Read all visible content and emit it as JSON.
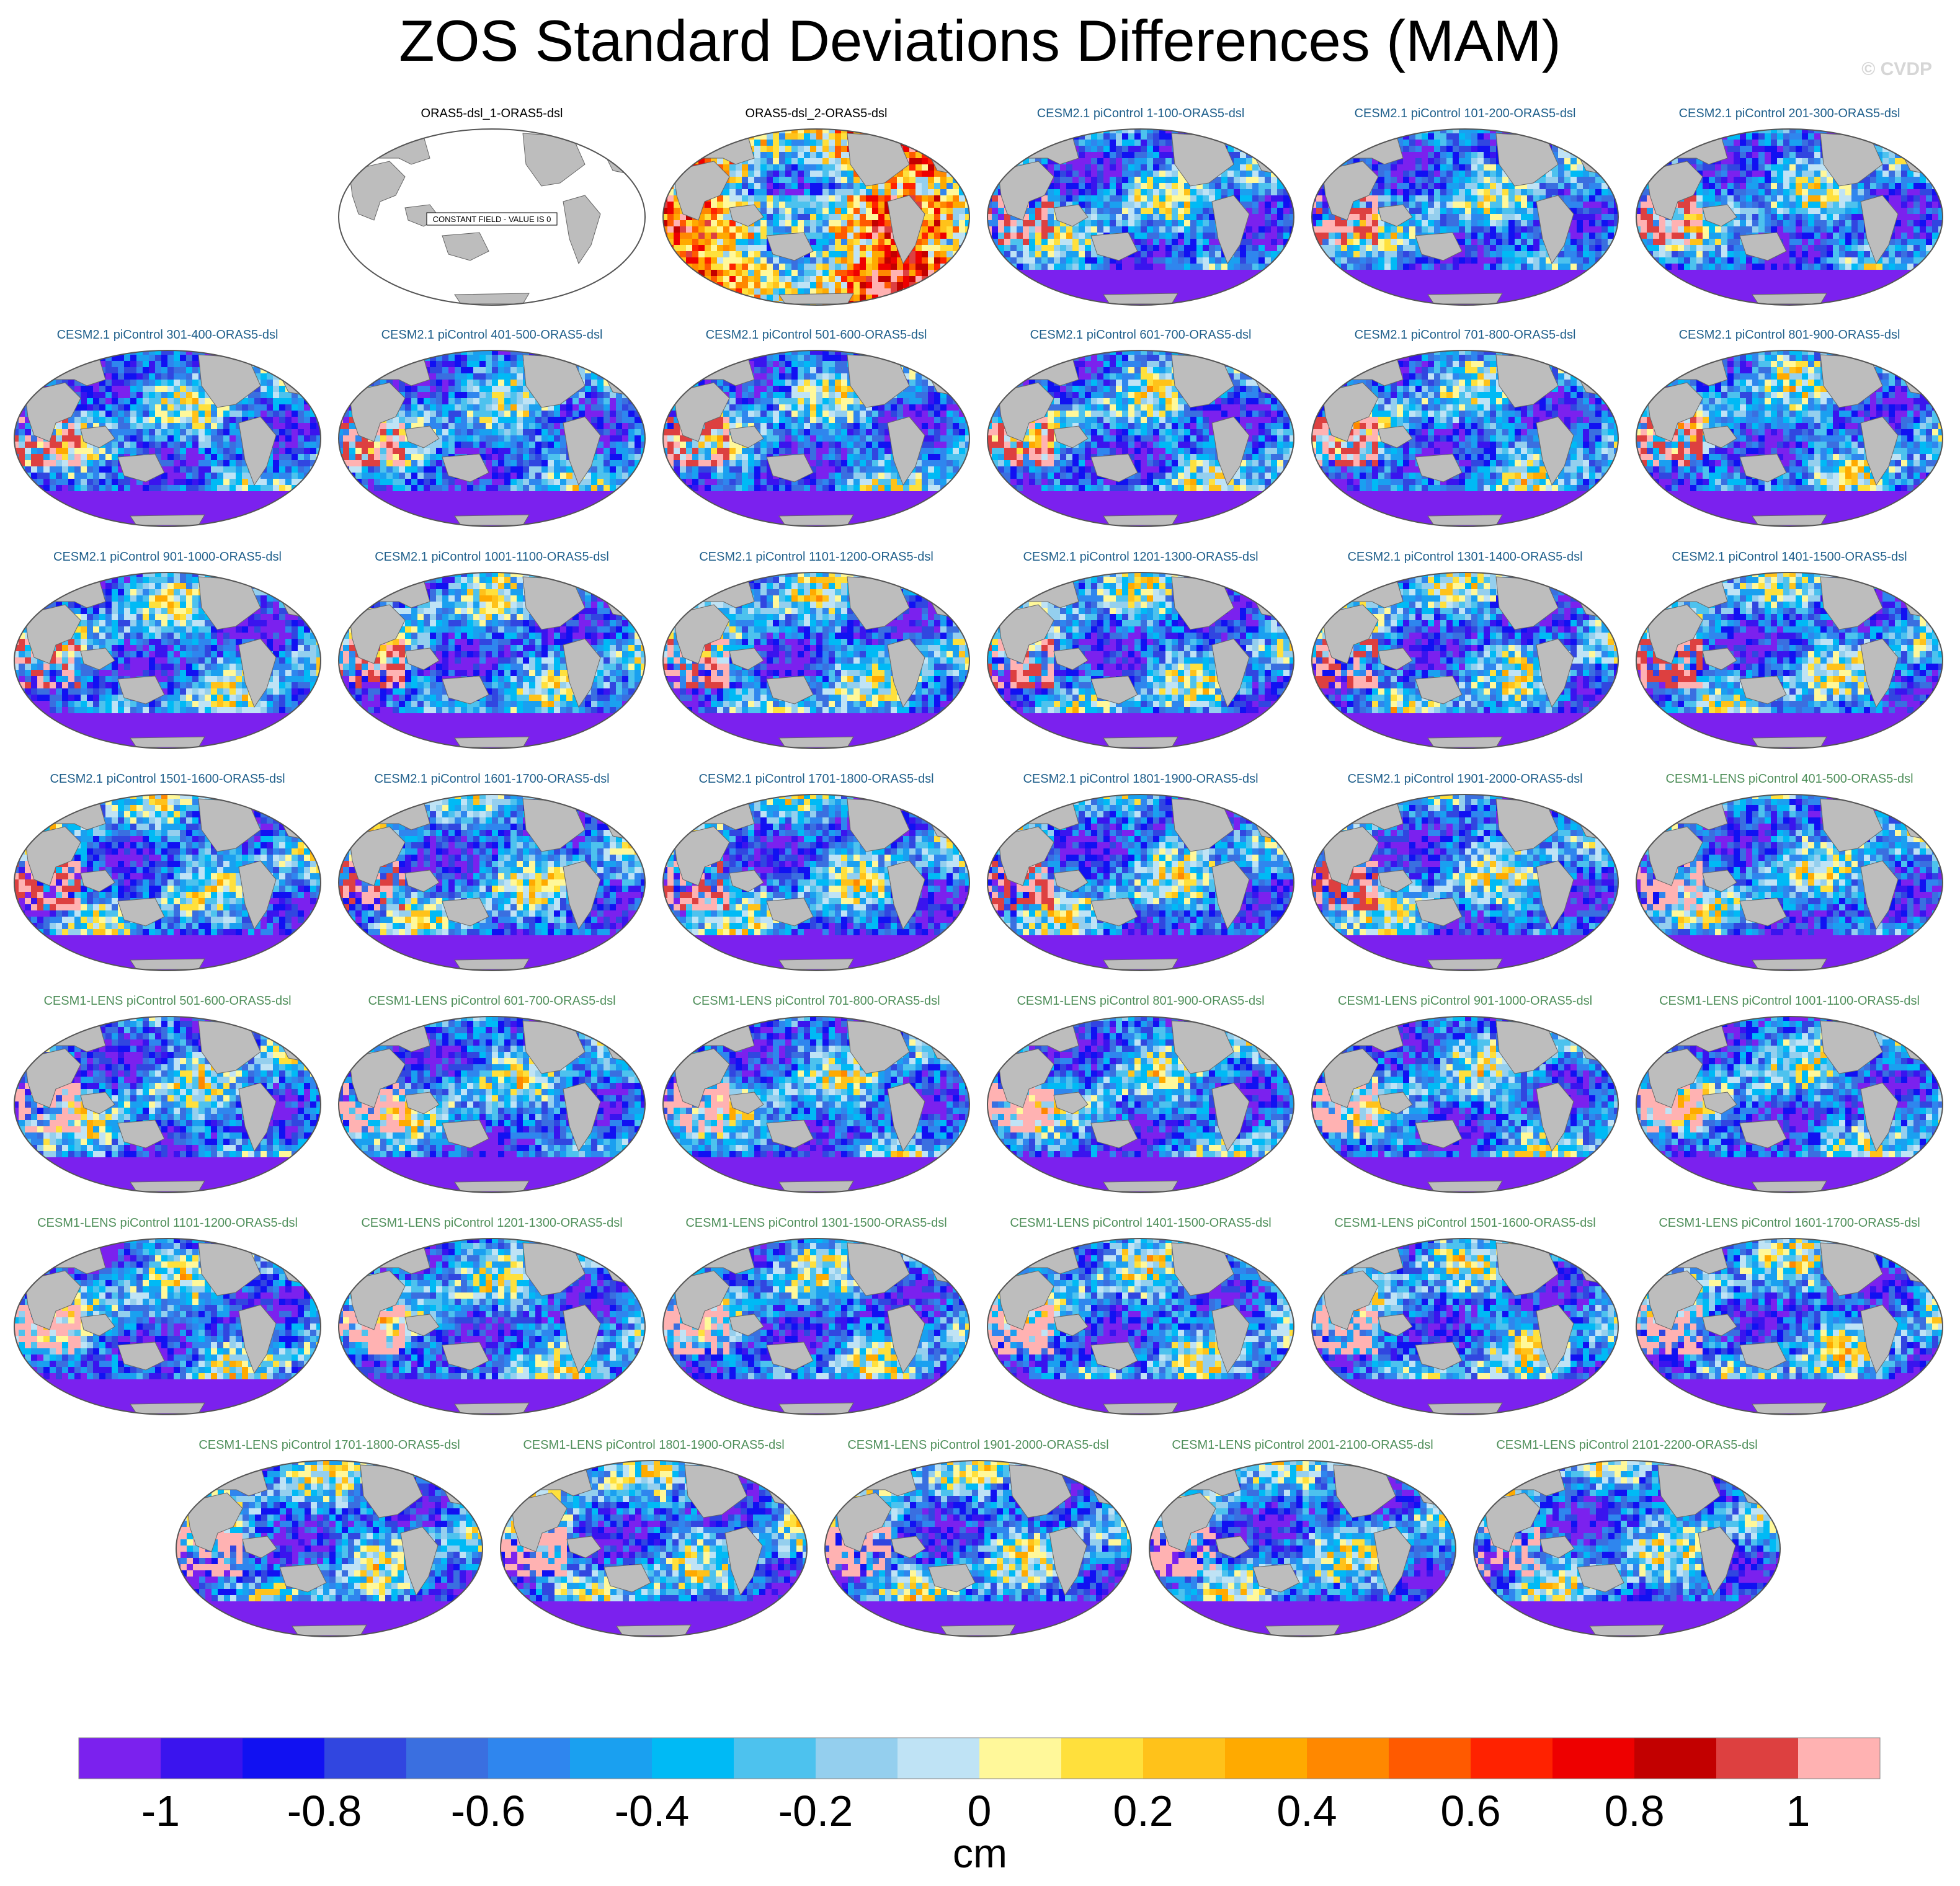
{
  "title": "ZOS Standard Deviations Differences (MAM)",
  "credit": "© CVDP",
  "units": "cm",
  "colors": {
    "title_dark": "#000000",
    "title_cesm2": "#1f5f8b",
    "title_cesm1": "#4f8f5a",
    "land": "#bdbdbd",
    "outline": "#555555"
  },
  "constant_field_note": "CONSTANT FIELD - VALUE IS 0",
  "chart_data": {
    "type": "heatmap",
    "title": "ZOS Standard Deviations Differences (MAM)",
    "colorbar": {
      "units": "cm",
      "range": [
        -1.1,
        1.1
      ],
      "levels": [
        -1,
        -0.9,
        -0.8,
        -0.7,
        -0.6,
        -0.5,
        -0.4,
        -0.3,
        -0.2,
        -0.1,
        0,
        0.1,
        0.2,
        0.3,
        0.4,
        0.5,
        0.6,
        0.7,
        0.8,
        0.9,
        1
      ],
      "tick_labels": [
        "-1",
        "-0.8",
        "-0.6",
        "-0.4",
        "-0.2",
        "0",
        "0.2",
        "0.4",
        "0.6",
        "0.8",
        "1"
      ],
      "colors": [
        "#7b21ee",
        "#3a14ee",
        "#1111f2",
        "#3146e0",
        "#3a6fe0",
        "#2f86ee",
        "#1aa0f0",
        "#00baf5",
        "#4dc2ee",
        "#94cfee",
        "#bfe3f5",
        "#fff89a",
        "#ffe03c",
        "#ffc21a",
        "#ffaa00",
        "#ff8800",
        "#ff5a00",
        "#ff2200",
        "#ee0000",
        "#c20000",
        "#dd4040",
        "#ffb2b2"
      ]
    },
    "panels": [
      {
        "title": "ORAS5-dsl_1-ORAS5-dsl",
        "group": "obs",
        "constant": true
      },
      {
        "title": "ORAS5-dsl_2-ORAS5-dsl",
        "group": "obs"
      },
      {
        "title": "CESM2.1 piControl 1-100-ORAS5-dsl",
        "group": "cesm2"
      },
      {
        "title": "CESM2.1 piControl 101-200-ORAS5-dsl",
        "group": "cesm2"
      },
      {
        "title": "CESM2.1 piControl 201-300-ORAS5-dsl",
        "group": "cesm2"
      },
      {
        "title": "CESM2.1 piControl 301-400-ORAS5-dsl",
        "group": "cesm2"
      },
      {
        "title": "CESM2.1 piControl 401-500-ORAS5-dsl",
        "group": "cesm2"
      },
      {
        "title": "CESM2.1 piControl 501-600-ORAS5-dsl",
        "group": "cesm2"
      },
      {
        "title": "CESM2.1 piControl 601-700-ORAS5-dsl",
        "group": "cesm2"
      },
      {
        "title": "CESM2.1 piControl 701-800-ORAS5-dsl",
        "group": "cesm2"
      },
      {
        "title": "CESM2.1 piControl 801-900-ORAS5-dsl",
        "group": "cesm2"
      },
      {
        "title": "CESM2.1 piControl 901-1000-ORAS5-dsl",
        "group": "cesm2"
      },
      {
        "title": "CESM2.1 piControl 1001-1100-ORAS5-dsl",
        "group": "cesm2"
      },
      {
        "title": "CESM2.1 piControl 1101-1200-ORAS5-dsl",
        "group": "cesm2"
      },
      {
        "title": "CESM2.1 piControl 1201-1300-ORAS5-dsl",
        "group": "cesm2"
      },
      {
        "title": "CESM2.1 piControl 1301-1400-ORAS5-dsl",
        "group": "cesm2"
      },
      {
        "title": "CESM2.1 piControl 1401-1500-ORAS5-dsl",
        "group": "cesm2"
      },
      {
        "title": "CESM2.1 piControl 1501-1600-ORAS5-dsl",
        "group": "cesm2"
      },
      {
        "title": "CESM2.1 piControl 1601-1700-ORAS5-dsl",
        "group": "cesm2"
      },
      {
        "title": "CESM2.1 piControl 1701-1800-ORAS5-dsl",
        "group": "cesm2"
      },
      {
        "title": "CESM2.1 piControl 1801-1900-ORAS5-dsl",
        "group": "cesm2"
      },
      {
        "title": "CESM2.1 piControl 1901-2000-ORAS5-dsl",
        "group": "cesm2"
      },
      {
        "title": "CESM1-LENS piControl 401-500-ORAS5-dsl",
        "group": "cesm1"
      },
      {
        "title": "CESM1-LENS piControl 501-600-ORAS5-dsl",
        "group": "cesm1"
      },
      {
        "title": "CESM1-LENS piControl 601-700-ORAS5-dsl",
        "group": "cesm1"
      },
      {
        "title": "CESM1-LENS piControl 701-800-ORAS5-dsl",
        "group": "cesm1"
      },
      {
        "title": "CESM1-LENS piControl 801-900-ORAS5-dsl",
        "group": "cesm1"
      },
      {
        "title": "CESM1-LENS piControl 901-1000-ORAS5-dsl",
        "group": "cesm1"
      },
      {
        "title": "CESM1-LENS piControl 1001-1100-ORAS5-dsl",
        "group": "cesm1"
      },
      {
        "title": "CESM1-LENS piControl 1101-1200-ORAS5-dsl",
        "group": "cesm1"
      },
      {
        "title": "CESM1-LENS piControl 1201-1300-ORAS5-dsl",
        "group": "cesm1"
      },
      {
        "title": "CESM1-LENS piControl 1301-1500-ORAS5-dsl",
        "group": "cesm1"
      },
      {
        "title": "CESM1-LENS piControl 1401-1500-ORAS5-dsl",
        "group": "cesm1"
      },
      {
        "title": "CESM1-LENS piControl 1501-1600-ORAS5-dsl",
        "group": "cesm1"
      },
      {
        "title": "CESM1-LENS piControl 1601-1700-ORAS5-dsl",
        "group": "cesm1"
      },
      {
        "title": "CESM1-LENS piControl 1701-1800-ORAS5-dsl",
        "group": "cesm1"
      },
      {
        "title": "CESM1-LENS piControl 1801-1900-ORAS5-dsl",
        "group": "cesm1"
      },
      {
        "title": "CESM1-LENS piControl 1901-2000-ORAS5-dsl",
        "group": "cesm1"
      },
      {
        "title": "CESM1-LENS piControl 2001-2100-ORAS5-dsl",
        "group": "cesm1"
      },
      {
        "title": "CESM1-LENS piControl 2101-2200-ORAS5-dsl",
        "group": "cesm1"
      }
    ]
  }
}
